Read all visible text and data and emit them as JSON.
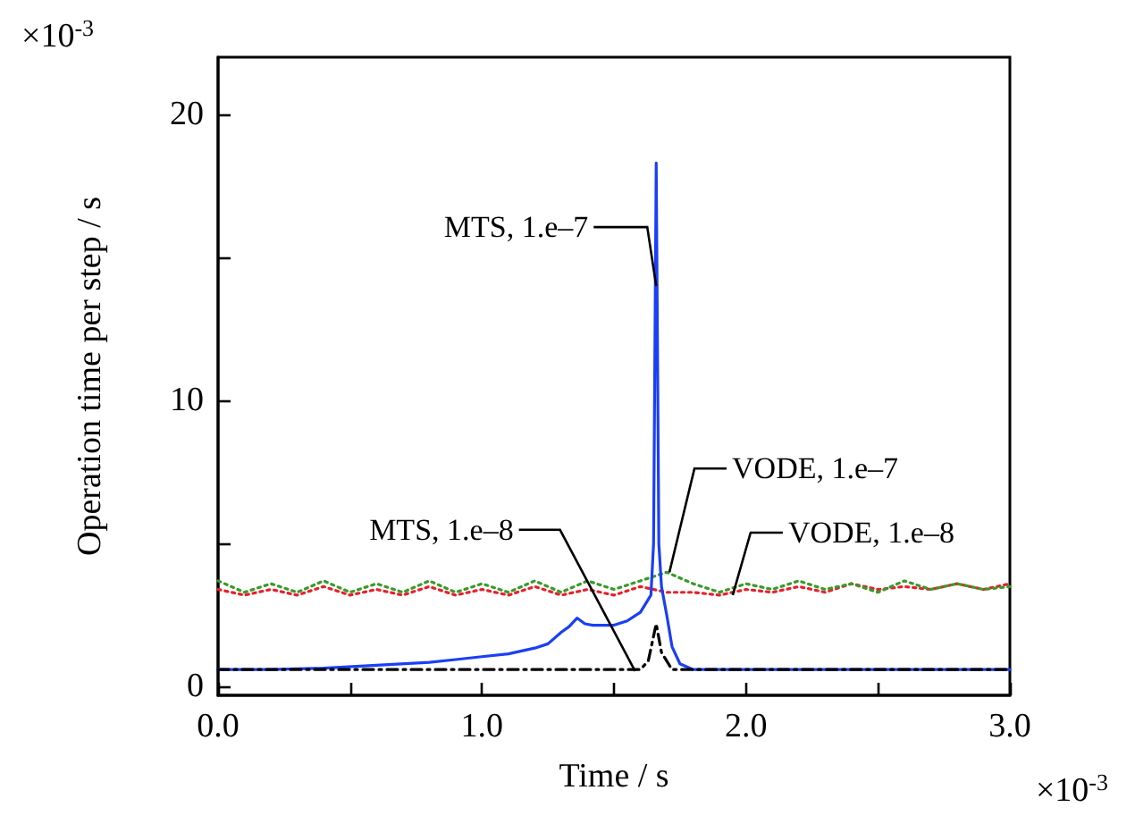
{
  "chart_data": {
    "type": "line",
    "xlabel": "Time / s",
    "ylabel": "Operation time per step / s",
    "xlim": [
      0,
      3.0
    ],
    "ylim": [
      -0.3,
      22
    ],
    "xticks": [
      {
        "value": 0,
        "label": "0.0"
      },
      {
        "value": 0.5,
        "label": null
      },
      {
        "value": 1.0,
        "label": "1.0"
      },
      {
        "value": 1.5,
        "label": null
      },
      {
        "value": 2.0,
        "label": "2.0"
      },
      {
        "value": 2.5,
        "label": null
      },
      {
        "value": 3.0,
        "label": "3.0"
      }
    ],
    "yticks": [
      0,
      {
        "value": 5,
        "label": null
      },
      10,
      {
        "value": 15,
        "label": null
      },
      20
    ],
    "grid": false,
    "marker": "none",
    "series": [
      {
        "color": "#e8202a",
        "line_style": "dotted",
        "x": [
          0,
          0.1,
          0.2,
          0.3,
          0.4,
          0.5,
          0.6,
          0.7,
          0.8,
          0.9,
          1.0,
          1.1,
          1.2,
          1.3,
          1.4,
          1.5,
          1.6,
          1.7,
          1.8,
          1.9,
          2.0,
          2.1,
          2.2,
          2.3,
          2.4,
          2.5,
          2.6,
          2.7,
          2.8,
          2.9,
          3.0
        ],
        "values": [
          3.4,
          3.2,
          3.4,
          3.2,
          3.5,
          3.2,
          3.4,
          3.2,
          3.5,
          3.2,
          3.4,
          3.2,
          3.5,
          3.2,
          3.4,
          3.2,
          3.5,
          3.3,
          3.3,
          3.2,
          3.4,
          3.3,
          3.5,
          3.3,
          3.6,
          3.4,
          3.5,
          3.4,
          3.6,
          3.4,
          3.6
        ]
      },
      {
        "color": "#3a9a2a",
        "line_style": "dotted",
        "x": [
          0,
          0.1,
          0.2,
          0.3,
          0.4,
          0.5,
          0.6,
          0.7,
          0.8,
          0.9,
          1.0,
          1.1,
          1.2,
          1.3,
          1.4,
          1.5,
          1.6,
          1.7,
          1.8,
          1.9,
          2.0,
          2.1,
          2.2,
          2.3,
          2.4,
          2.5,
          2.6,
          2.7,
          2.8,
          2.9,
          3.0
        ],
        "values": [
          3.7,
          3.3,
          3.6,
          3.3,
          3.7,
          3.3,
          3.6,
          3.3,
          3.7,
          3.3,
          3.6,
          3.3,
          3.7,
          3.3,
          3.7,
          3.4,
          3.7,
          4.0,
          3.6,
          3.3,
          3.6,
          3.4,
          3.7,
          3.4,
          3.6,
          3.3,
          3.7,
          3.4,
          3.6,
          3.4,
          3.5
        ]
      },
      {
        "color": "#1a3ff5",
        "line_style": "solid",
        "x": [
          0,
          0.2,
          0.4,
          0.6,
          0.8,
          0.9,
          1.0,
          1.1,
          1.2,
          1.25,
          1.3,
          1.33,
          1.36,
          1.39,
          1.42,
          1.5,
          1.55,
          1.6,
          1.64,
          1.65,
          1.66,
          1.67,
          1.68,
          1.7,
          1.72,
          1.75,
          1.8,
          2.0,
          2.5,
          3.0
        ],
        "values": [
          0.6,
          0.6,
          0.65,
          0.75,
          0.85,
          0.95,
          1.05,
          1.15,
          1.35,
          1.5,
          1.9,
          2.1,
          2.4,
          2.2,
          2.15,
          2.15,
          2.3,
          2.6,
          3.2,
          5,
          18.3,
          5,
          3.5,
          2.5,
          1.4,
          0.8,
          0.6,
          0.6,
          0.6,
          0.6
        ]
      },
      {
        "color": "#000000",
        "line_style": "dashed",
        "x": [
          0,
          1.0,
          1.6,
          1.63,
          1.66,
          1.68,
          1.72,
          3.0
        ],
        "values": [
          0.6,
          0.6,
          0.6,
          0.9,
          2.2,
          1.2,
          0.6,
          0.6
        ]
      }
    ],
    "annotations": [
      {
        "text": "MTS, 1.e–7",
        "x": 1.66,
        "y": 14
      },
      {
        "text": "VODE, 1.e–7",
        "x": 1.71,
        "y": 4.0
      },
      {
        "text": "VODE, 1.e–8",
        "x": 1.95,
        "y": 3.2
      },
      {
        "text": "MTS, 1.e–8",
        "x": 1.58,
        "y": 0.55
      },
      "×10$^{-3}$",
      "×10$^{-3}$"
    ]
  }
}
